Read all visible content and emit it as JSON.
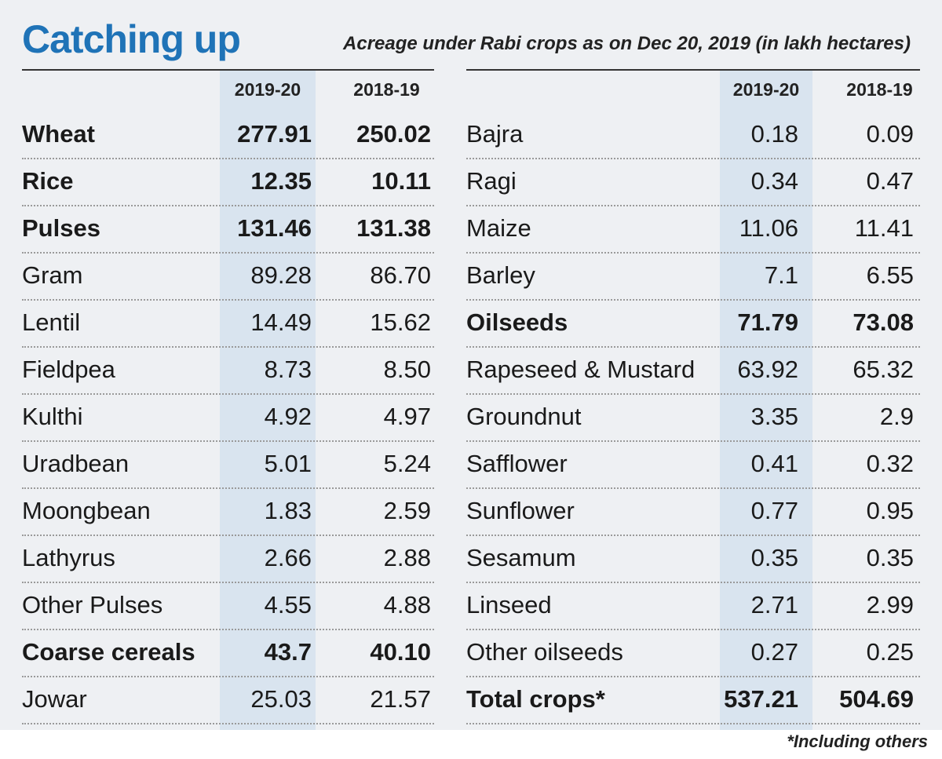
{
  "header": {
    "title": "Catching up",
    "subtitle": "Acreage under Rabi crops as on Dec 20, 2019 (in lakh hectares)"
  },
  "footnote": "*Including others",
  "colors": {
    "title": "#1f73b7",
    "shade": "#d9e4ef",
    "background": "#eef0f3"
  },
  "chart_data": {
    "type": "table",
    "title": "Catching up",
    "subtitle": "Acreage under Rabi crops as on Dec 20, 2019 (in lakh hectares)",
    "columns": [
      "2019-20",
      "2018-19"
    ],
    "left_rows": [
      {
        "crop": "Wheat",
        "v2019_20": "277.91",
        "v2018_19": "250.02",
        "bold": true
      },
      {
        "crop": "Rice",
        "v2019_20": "12.35",
        "v2018_19": "10.11",
        "bold": true
      },
      {
        "crop": "Pulses",
        "v2019_20": "131.46",
        "v2018_19": "131.38",
        "bold": true
      },
      {
        "crop": "Gram",
        "v2019_20": "89.28",
        "v2018_19": "86.70",
        "bold": false
      },
      {
        "crop": "Lentil",
        "v2019_20": "14.49",
        "v2018_19": "15.62",
        "bold": false
      },
      {
        "crop": "Fieldpea",
        "v2019_20": "8.73",
        "v2018_19": "8.50",
        "bold": false
      },
      {
        "crop": "Kulthi",
        "v2019_20": "4.92",
        "v2018_19": "4.97",
        "bold": false
      },
      {
        "crop": "Uradbean",
        "v2019_20": "5.01",
        "v2018_19": "5.24",
        "bold": false
      },
      {
        "crop": "Moongbean",
        "v2019_20": "1.83",
        "v2018_19": "2.59",
        "bold": false
      },
      {
        "crop": "Lathyrus",
        "v2019_20": "2.66",
        "v2018_19": "2.88",
        "bold": false
      },
      {
        "crop": "Other Pulses",
        "v2019_20": "4.55",
        "v2018_19": "4.88",
        "bold": false
      },
      {
        "crop": "Coarse cereals",
        "v2019_20": "43.7",
        "v2018_19": "40.10",
        "bold": true
      },
      {
        "crop": "Jowar",
        "v2019_20": "25.03",
        "v2018_19": "21.57",
        "bold": false
      }
    ],
    "right_rows": [
      {
        "crop": "Bajra",
        "v2019_20": "0.18",
        "v2018_19": "0.09",
        "bold": false
      },
      {
        "crop": "Ragi",
        "v2019_20": "0.34",
        "v2018_19": "0.47",
        "bold": false
      },
      {
        "crop": "Maize",
        "v2019_20": "11.06",
        "v2018_19": "11.41",
        "bold": false
      },
      {
        "crop": "Barley",
        "v2019_20": "7.1",
        "v2018_19": "6.55",
        "bold": false
      },
      {
        "crop": "Oilseeds",
        "v2019_20": "71.79",
        "v2018_19": "73.08",
        "bold": true
      },
      {
        "crop": "Rapeseed & Mustard",
        "v2019_20": "63.92",
        "v2018_19": "65.32",
        "bold": false
      },
      {
        "crop": "Groundnut",
        "v2019_20": "3.35",
        "v2018_19": "2.9",
        "bold": false
      },
      {
        "crop": "Safflower",
        "v2019_20": "0.41",
        "v2018_19": "0.32",
        "bold": false
      },
      {
        "crop": "Sunflower",
        "v2019_20": "0.77",
        "v2018_19": "0.95",
        "bold": false
      },
      {
        "crop": "Sesamum",
        "v2019_20": "0.35",
        "v2018_19": "0.35",
        "bold": false
      },
      {
        "crop": "Linseed",
        "v2019_20": "2.71",
        "v2018_19": "2.99",
        "bold": false
      },
      {
        "crop": "Other oilseeds",
        "v2019_20": "0.27",
        "v2018_19": "0.25",
        "bold": false
      },
      {
        "crop": "Total crops*",
        "v2019_20": "537.21",
        "v2018_19": "504.69",
        "bold": true
      }
    ]
  }
}
